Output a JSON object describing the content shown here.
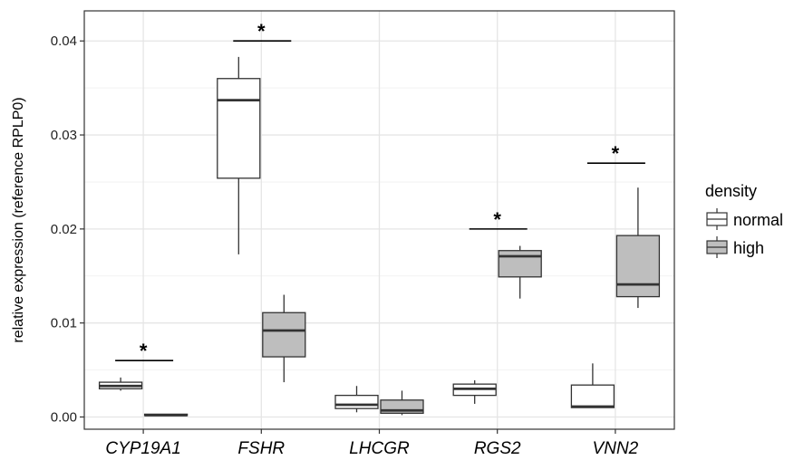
{
  "chart_data": {
    "type": "boxplot",
    "ylabel": "relative expression (reference RPLP0)",
    "ylim": [
      -0.0013,
      0.0432
    ],
    "yticks": [
      0.0,
      0.01,
      0.02,
      0.03,
      0.04
    ],
    "ytick_labels": [
      "0.00",
      "0.01",
      "0.02",
      "0.03",
      "0.04"
    ],
    "categories": [
      "CYP19A1",
      "FSHR",
      "LHCGR",
      "RGS2",
      "VNN2"
    ],
    "grid": true,
    "legend": {
      "title": "density",
      "position": "right",
      "entries": [
        "normal",
        "high"
      ]
    },
    "colors": {
      "normal": "#ffffff",
      "high": "#bebebe",
      "outline": "#333333",
      "grid": "#e5e5e5"
    },
    "series": [
      {
        "name": "normal",
        "boxes": [
          {
            "min": 0.0028,
            "q1": 0.003,
            "median": 0.0033,
            "q3": 0.0037,
            "max": 0.0042
          },
          {
            "min": 0.0173,
            "q1": 0.0254,
            "median": 0.0337,
            "q3": 0.036,
            "max": 0.0383
          },
          {
            "min": 0.0005,
            "q1": 0.0009,
            "median": 0.0013,
            "q3": 0.0023,
            "max": 0.0033
          },
          {
            "min": 0.0014,
            "q1": 0.0023,
            "median": 0.003,
            "q3": 0.0035,
            "max": 0.0039
          },
          {
            "min": 0.001,
            "q1": 0.001,
            "median": 0.0011,
            "q3": 0.0034,
            "max": 0.0057
          }
        ]
      },
      {
        "name": "high",
        "boxes": [
          {
            "min": 0.0002,
            "q1": 0.0002,
            "median": 0.0002,
            "q3": 0.0003,
            "max": 0.0003
          },
          {
            "min": 0.0037,
            "q1": 0.0064,
            "median": 0.0092,
            "q3": 0.0111,
            "max": 0.013
          },
          {
            "min": 0.0002,
            "q1": 0.0004,
            "median": 0.0007,
            "q3": 0.0018,
            "max": 0.0028
          },
          {
            "min": 0.0126,
            "q1": 0.0149,
            "median": 0.0171,
            "q3": 0.0177,
            "max": 0.0182
          },
          {
            "min": 0.0116,
            "q1": 0.0128,
            "median": 0.0141,
            "q3": 0.0193,
            "max": 0.0244
          }
        ]
      }
    ],
    "significance": [
      {
        "category": "CYP19A1",
        "y": 0.006,
        "label": "*"
      },
      {
        "category": "FSHR",
        "y": 0.04,
        "label": "*"
      },
      {
        "category": "RGS2",
        "y": 0.02,
        "label": "*"
      },
      {
        "category": "VNN2",
        "y": 0.027,
        "label": "*"
      }
    ]
  }
}
